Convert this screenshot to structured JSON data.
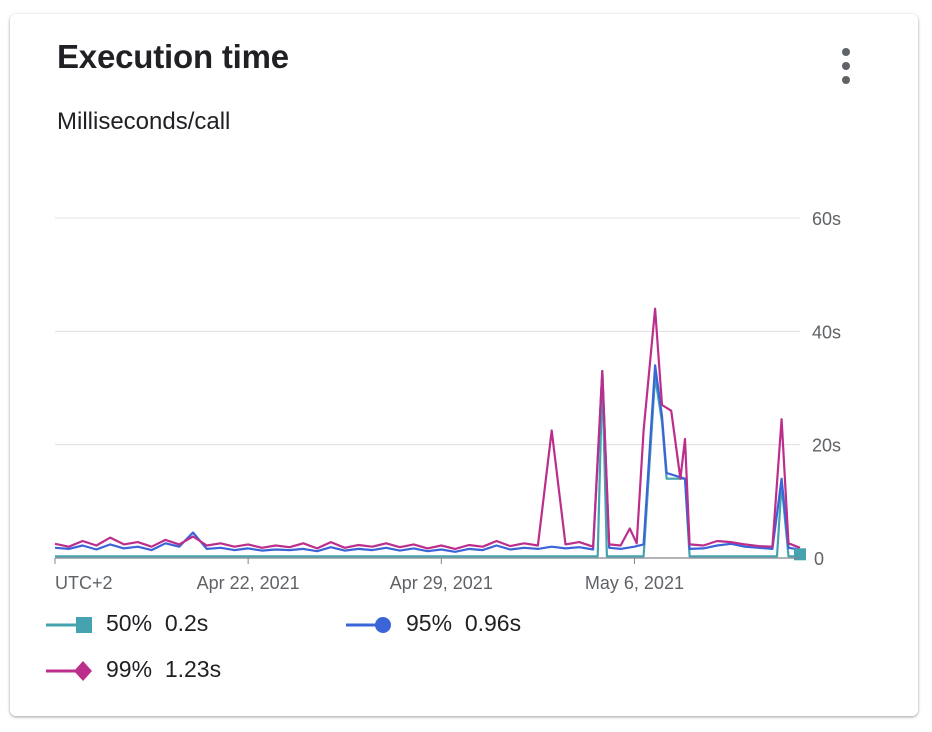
{
  "card": {
    "title": "Execution time",
    "subtitle": "Milliseconds/call",
    "menu_icon": "more-vert-icon"
  },
  "legend": [
    {
      "label": "50%",
      "value": "0.2s",
      "color": "#44A3AE",
      "marker": "square"
    },
    {
      "label": "95%",
      "value": "0.96s",
      "color": "#3B64D8",
      "marker": "circle"
    },
    {
      "label": "99%",
      "value": "1.23s",
      "color": "#BC2E8B",
      "marker": "diamond"
    }
  ],
  "chart_data": {
    "type": "line",
    "title": "Execution time",
    "subtitle": "Milliseconds/call",
    "ylim": [
      0,
      60
    ],
    "y_ticks": [
      0,
      20,
      40,
      60
    ],
    "y_tick_labels": [
      "0",
      "20s",
      "40s",
      "60s"
    ],
    "y_axis_side": "right",
    "grid": true,
    "x_range": [
      "2021-04-15",
      "2021-05-12"
    ],
    "x_tick_labels": [
      {
        "date": "2021-04-15",
        "label": "UTC+2"
      },
      {
        "date": "2021-04-22",
        "label": "Apr 22, 2021"
      },
      {
        "date": "2021-04-29",
        "label": "Apr 29, 2021"
      },
      {
        "date": "2021-05-06",
        "label": "May 6, 2021"
      }
    ],
    "legend_position": "bottom",
    "series": [
      {
        "name": "50%",
        "color": "#44A3AE",
        "points": [
          [
            "2021-04-15T00:00",
            0.3
          ],
          [
            "2021-04-20T00:00",
            0.3
          ],
          [
            "2021-04-25T00:00",
            0.3
          ],
          [
            "2021-04-30T00:00",
            0.3
          ],
          [
            "2021-05-03T12:00",
            0.3
          ],
          [
            "2021-05-04T16:00",
            0.3
          ],
          [
            "2021-05-04T20:00",
            32
          ],
          [
            "2021-05-05T00:00",
            0.3
          ],
          [
            "2021-05-06T08:00",
            0.3
          ],
          [
            "2021-05-06T18:00",
            32
          ],
          [
            "2021-05-07T00:00",
            24
          ],
          [
            "2021-05-07T04:00",
            14
          ],
          [
            "2021-05-07T20:00",
            14
          ],
          [
            "2021-05-08T00:00",
            0.3
          ],
          [
            "2021-05-11T04:00",
            0.3
          ],
          [
            "2021-05-11T08:00",
            13
          ],
          [
            "2021-05-11T14:00",
            0.3
          ],
          [
            "2021-05-12T00:00",
            0.3
          ]
        ]
      },
      {
        "name": "95%",
        "color": "#3B64D8",
        "points": [
          [
            "2021-04-15T00:00",
            1.8
          ],
          [
            "2021-04-15T12:00",
            1.6
          ],
          [
            "2021-04-16T00:00",
            2.2
          ],
          [
            "2021-04-16T12:00",
            1.5
          ],
          [
            "2021-04-17T00:00",
            2.4
          ],
          [
            "2021-04-17T12:00",
            1.7
          ],
          [
            "2021-04-18T00:00",
            2.0
          ],
          [
            "2021-04-18T12:00",
            1.4
          ],
          [
            "2021-04-19T00:00",
            2.6
          ],
          [
            "2021-04-19T12:00",
            2.0
          ],
          [
            "2021-04-20T00:00",
            4.5
          ],
          [
            "2021-04-20T12:00",
            1.6
          ],
          [
            "2021-04-21T00:00",
            1.8
          ],
          [
            "2021-04-21T12:00",
            1.4
          ],
          [
            "2021-04-22T00:00",
            1.7
          ],
          [
            "2021-04-22T12:00",
            1.3
          ],
          [
            "2021-04-23T00:00",
            1.5
          ],
          [
            "2021-04-23T12:00",
            1.4
          ],
          [
            "2021-04-24T00:00",
            1.6
          ],
          [
            "2021-04-24T12:00",
            1.2
          ],
          [
            "2021-04-25T00:00",
            1.9
          ],
          [
            "2021-04-25T12:00",
            1.3
          ],
          [
            "2021-04-26T00:00",
            1.6
          ],
          [
            "2021-04-26T12:00",
            1.4
          ],
          [
            "2021-04-27T00:00",
            1.8
          ],
          [
            "2021-04-27T12:00",
            1.3
          ],
          [
            "2021-04-28T00:00",
            1.7
          ],
          [
            "2021-04-28T12:00",
            1.2
          ],
          [
            "2021-04-29T00:00",
            1.5
          ],
          [
            "2021-04-29T12:00",
            1.1
          ],
          [
            "2021-04-30T00:00",
            1.6
          ],
          [
            "2021-04-30T12:00",
            1.4
          ],
          [
            "2021-05-01T00:00",
            2.2
          ],
          [
            "2021-05-01T12:00",
            1.5
          ],
          [
            "2021-05-02T00:00",
            1.8
          ],
          [
            "2021-05-02T12:00",
            1.6
          ],
          [
            "2021-05-03T00:00",
            2.0
          ],
          [
            "2021-05-03T12:00",
            1.7
          ],
          [
            "2021-05-04T00:00",
            1.9
          ],
          [
            "2021-05-04T12:00",
            1.5
          ],
          [
            "2021-05-04T20:00",
            33
          ],
          [
            "2021-05-05T02:00",
            1.8
          ],
          [
            "2021-05-05T12:00",
            1.6
          ],
          [
            "2021-05-06T00:00",
            2.0
          ],
          [
            "2021-05-06T08:00",
            2.4
          ],
          [
            "2021-05-06T18:00",
            34
          ],
          [
            "2021-05-07T00:00",
            25
          ],
          [
            "2021-05-07T04:00",
            15
          ],
          [
            "2021-05-07T20:00",
            14
          ],
          [
            "2021-05-08T00:00",
            1.6
          ],
          [
            "2021-05-08T12:00",
            1.7
          ],
          [
            "2021-05-09T00:00",
            2.2
          ],
          [
            "2021-05-09T12:00",
            2.5
          ],
          [
            "2021-05-10T00:00",
            2.0
          ],
          [
            "2021-05-10T12:00",
            1.8
          ],
          [
            "2021-05-11T00:00",
            1.6
          ],
          [
            "2021-05-11T08:00",
            14
          ],
          [
            "2021-05-11T14:00",
            1.8
          ],
          [
            "2021-05-12T00:00",
            1.5
          ]
        ]
      },
      {
        "name": "99%",
        "color": "#BC2E8B",
        "points": [
          [
            "2021-04-15T00:00",
            2.5
          ],
          [
            "2021-04-15T12:00",
            2.0
          ],
          [
            "2021-04-16T00:00",
            3.0
          ],
          [
            "2021-04-16T12:00",
            2.2
          ],
          [
            "2021-04-17T00:00",
            3.6
          ],
          [
            "2021-04-17T12:00",
            2.4
          ],
          [
            "2021-04-18T00:00",
            2.8
          ],
          [
            "2021-04-18T12:00",
            2.0
          ],
          [
            "2021-04-19T00:00",
            3.2
          ],
          [
            "2021-04-19T12:00",
            2.4
          ],
          [
            "2021-04-20T00:00",
            3.8
          ],
          [
            "2021-04-20T12:00",
            2.2
          ],
          [
            "2021-04-21T00:00",
            2.6
          ],
          [
            "2021-04-21T12:00",
            2.0
          ],
          [
            "2021-04-22T00:00",
            2.4
          ],
          [
            "2021-04-22T12:00",
            1.8
          ],
          [
            "2021-04-23T00:00",
            2.2
          ],
          [
            "2021-04-23T12:00",
            1.9
          ],
          [
            "2021-04-24T00:00",
            2.6
          ],
          [
            "2021-04-24T12:00",
            1.7
          ],
          [
            "2021-04-25T00:00",
            2.8
          ],
          [
            "2021-04-25T12:00",
            1.8
          ],
          [
            "2021-04-26T00:00",
            2.3
          ],
          [
            "2021-04-26T12:00",
            2.0
          ],
          [
            "2021-04-27T00:00",
            2.6
          ],
          [
            "2021-04-27T12:00",
            1.9
          ],
          [
            "2021-04-28T00:00",
            2.4
          ],
          [
            "2021-04-28T12:00",
            1.7
          ],
          [
            "2021-04-29T00:00",
            2.2
          ],
          [
            "2021-04-29T12:00",
            1.6
          ],
          [
            "2021-04-30T00:00",
            2.3
          ],
          [
            "2021-04-30T12:00",
            2.0
          ],
          [
            "2021-05-01T00:00",
            3.0
          ],
          [
            "2021-05-01T12:00",
            2.1
          ],
          [
            "2021-05-02T00:00",
            2.6
          ],
          [
            "2021-05-02T12:00",
            2.2
          ],
          [
            "2021-05-03T00:00",
            22.5
          ],
          [
            "2021-05-03T12:00",
            2.4
          ],
          [
            "2021-05-04T00:00",
            2.8
          ],
          [
            "2021-05-04T12:00",
            2.0
          ],
          [
            "2021-05-04T20:00",
            33
          ],
          [
            "2021-05-05T02:00",
            2.4
          ],
          [
            "2021-05-05T12:00",
            2.2
          ],
          [
            "2021-05-05T20:00",
            5.2
          ],
          [
            "2021-05-06T02:00",
            2.6
          ],
          [
            "2021-05-06T08:00",
            22.5
          ],
          [
            "2021-05-06T18:00",
            44
          ],
          [
            "2021-05-07T00:00",
            27
          ],
          [
            "2021-05-07T08:00",
            26
          ],
          [
            "2021-05-07T16:00",
            14
          ],
          [
            "2021-05-07T20:00",
            21
          ],
          [
            "2021-05-08T00:00",
            2.4
          ],
          [
            "2021-05-08T12:00",
            2.2
          ],
          [
            "2021-05-09T00:00",
            3.0
          ],
          [
            "2021-05-09T12:00",
            2.8
          ],
          [
            "2021-05-10T00:00",
            2.4
          ],
          [
            "2021-05-10T12:00",
            2.1
          ],
          [
            "2021-05-11T00:00",
            2.0
          ],
          [
            "2021-05-11T08:00",
            24.5
          ],
          [
            "2021-05-11T14:00",
            2.6
          ],
          [
            "2021-05-12T00:00",
            1.8
          ]
        ]
      }
    ]
  }
}
